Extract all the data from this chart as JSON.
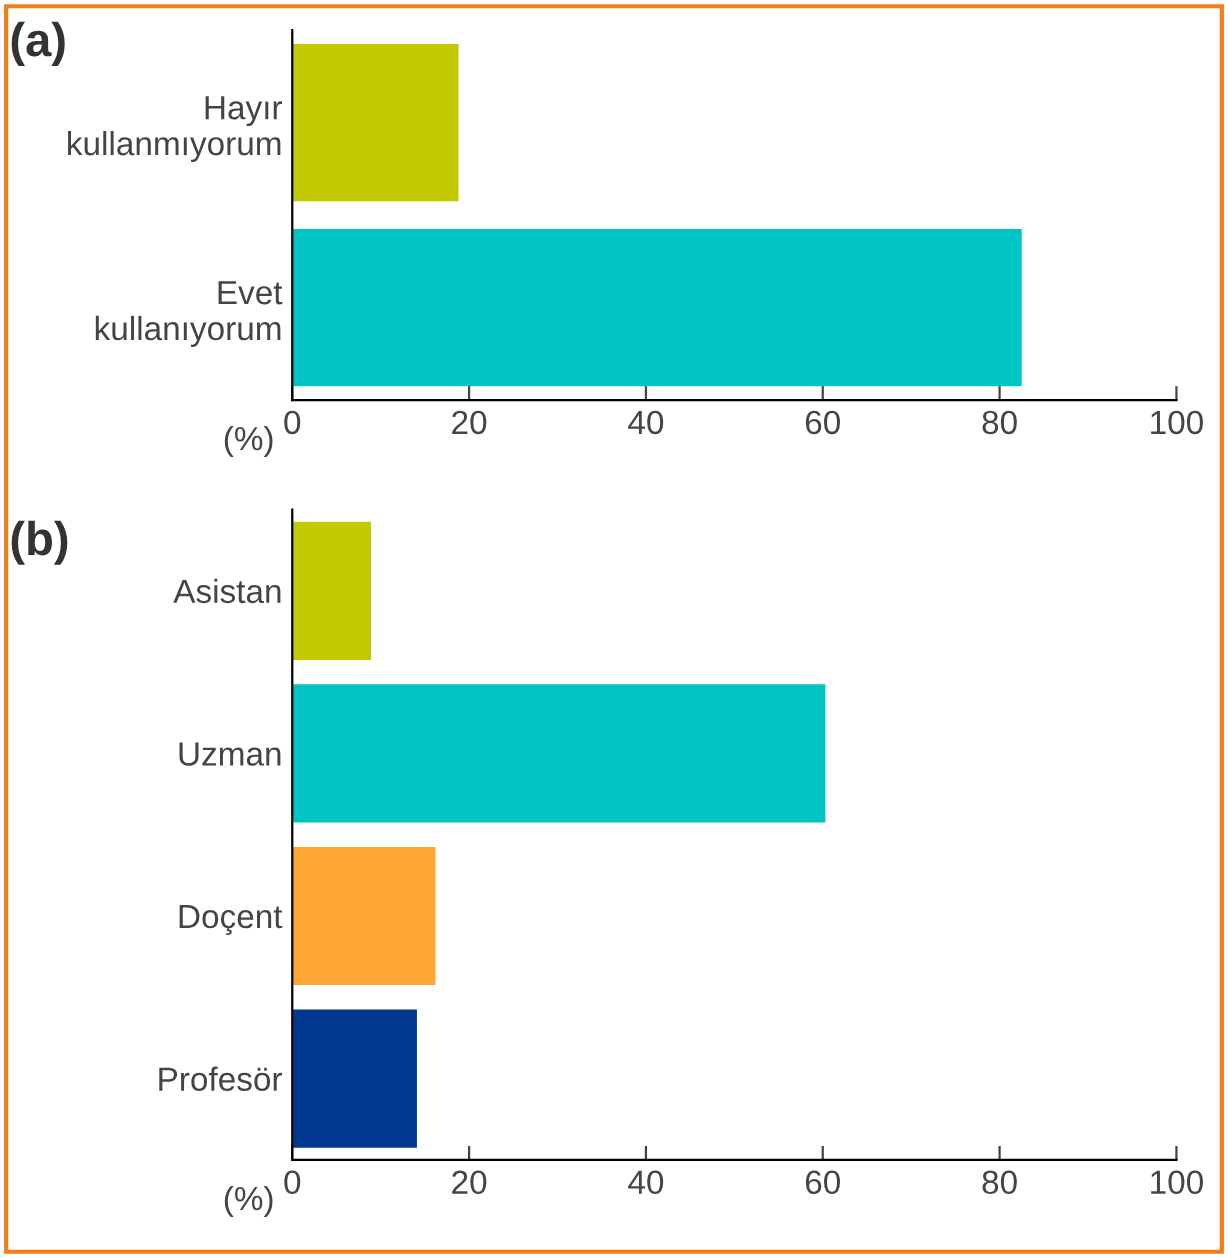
{
  "chart_data": [
    {
      "type": "bar",
      "orientation": "horizontal",
      "title": "(a)",
      "xlabel": "(%)",
      "categories": [
        "Hayır\nkullanmıyorum",
        "Evet\nkullanıyorum"
      ],
      "values": [
        18.8,
        82.5
      ],
      "colors": [
        "#c3c900",
        "#00c5c3"
      ],
      "xlim": [
        0,
        100
      ],
      "xticks": [
        0,
        20,
        40,
        60,
        80,
        100
      ],
      "grid": false
    },
    {
      "type": "bar",
      "orientation": "horizontal",
      "title": "(b)",
      "xlabel": "(%)",
      "categories": [
        "Asistan",
        "Uzman",
        "Doçent",
        "Profesör"
      ],
      "values": [
        8.9,
        60.3,
        16.2,
        14.1
      ],
      "colors": [
        "#c3c900",
        "#00c5c3",
        "#ffa531",
        "#033890"
      ],
      "xlim": [
        0,
        100
      ],
      "xticks": [
        0,
        20,
        40,
        60,
        80,
        100
      ],
      "grid": false
    }
  ]
}
